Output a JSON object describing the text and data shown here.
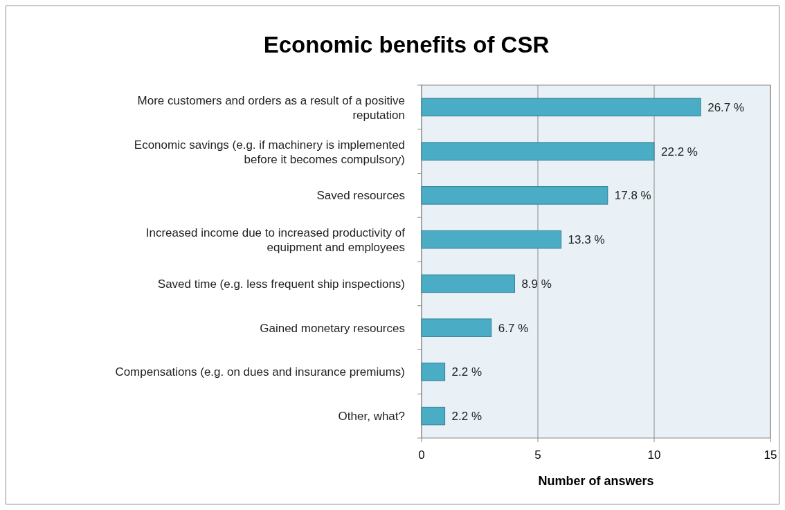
{
  "chart_data": {
    "type": "bar",
    "orientation": "horizontal",
    "title": "Economic benefits of CSR",
    "xlabel": "Number of answers",
    "categories": [
      "More customers and orders as a result of a positive reputation",
      "Economic savings (e.g. if machinery is implemented before it becomes compulsory)",
      "Saved resources",
      "Increased income due to increased productivity of equipment and employees",
      "Saved time (e.g. less frequent ship inspections)",
      "Gained monetary resources",
      "Compensations (e.g. on dues and insurance premiums)",
      "Other, what?"
    ],
    "values": [
      12,
      10,
      8,
      6,
      4,
      3,
      1,
      1
    ],
    "annotations": [
      {
        "text": "26.7 %",
        "x": 12,
        "y": "More customers and orders as a result of a positive reputation"
      },
      {
        "text": "22.2 %",
        "x": 10,
        "y": "Economic savings (e.g. if machinery is implemented before it becomes compulsory)"
      },
      {
        "text": "17.8 %",
        "x": 8,
        "y": "Saved resources"
      },
      {
        "text": "13.3 %",
        "x": 6,
        "y": "Increased income due to increased productivity of equipment and employees"
      },
      {
        "text": "8.9 %",
        "x": 4,
        "y": "Saved time (e.g. less frequent ship inspections)"
      },
      {
        "text": "6.7 %",
        "x": 3,
        "y": "Gained monetary resources"
      },
      {
        "text": "2.2 %",
        "x": 1,
        "y": "Compensations (e.g. on dues and insurance premiums)"
      },
      {
        "text": "2.2 %",
        "x": 1,
        "y": "Other, what?"
      }
    ],
    "color": "#4bacc6",
    "xlim": [
      0,
      15
    ],
    "xticks": [
      0,
      5,
      10,
      15
    ],
    "grid": "x"
  }
}
